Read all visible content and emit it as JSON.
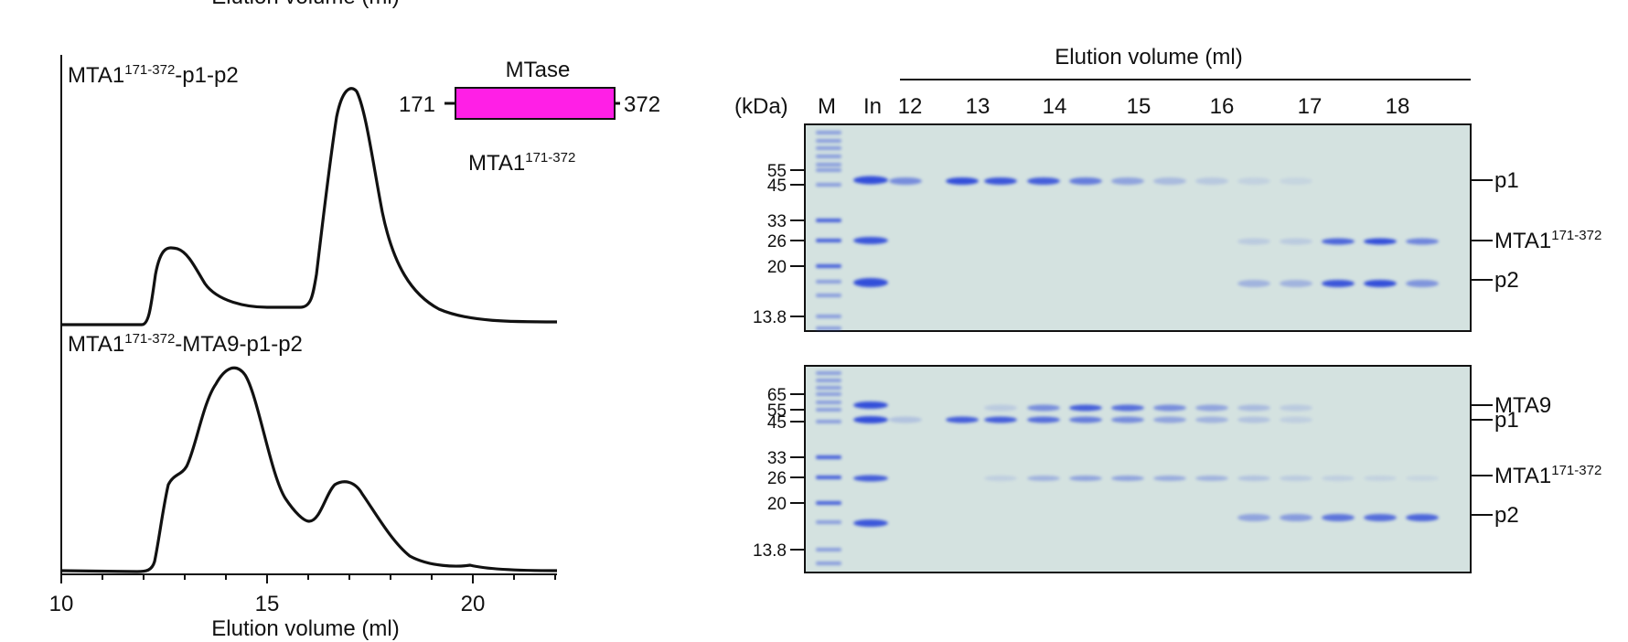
{
  "top_clipped_label": "Elution volume (ml)",
  "chromatogram": {
    "trace1_label": "MTA1",
    "trace1_sup": "171-372",
    "trace1_suffix": "-p1-p2",
    "trace2_label": "MTA1",
    "trace2_sup": "171-372",
    "trace2_suffix": "-MTA9-p1-p2",
    "x_ticks": [
      "10",
      "15",
      "20"
    ],
    "x_axis_label": "Elution volume (ml)"
  },
  "domain_schematic": {
    "domain_name": "MTase",
    "start": "171",
    "end": "372",
    "construct_name": "MTA1",
    "construct_sup": "171-372",
    "color": "#ff1fe6"
  },
  "gel_panel": {
    "header": "Elution volume (ml)",
    "kda_label": "(kDa)",
    "lanes": [
      "M",
      "In",
      "12",
      "13",
      "14",
      "15",
      "16",
      "17",
      "18"
    ],
    "gel1_markers": [
      "55",
      "45",
      "33",
      "26",
      "20",
      "13.8"
    ],
    "gel1_bands": [
      {
        "name": "p1"
      },
      {
        "name": "MTA1",
        "sup": "171-372"
      },
      {
        "name": "p2"
      }
    ],
    "gel2_markers": [
      "65",
      "55",
      "45",
      "33",
      "26",
      "20",
      "13.8"
    ],
    "gel2_bands": [
      {
        "name": "MTA9"
      },
      {
        "name": "p1"
      },
      {
        "name": "MTA1",
        "sup": "171-372"
      },
      {
        "name": "p2"
      }
    ],
    "band_color": "#2c47d9",
    "gel_bg": "#d4e2e0"
  }
}
